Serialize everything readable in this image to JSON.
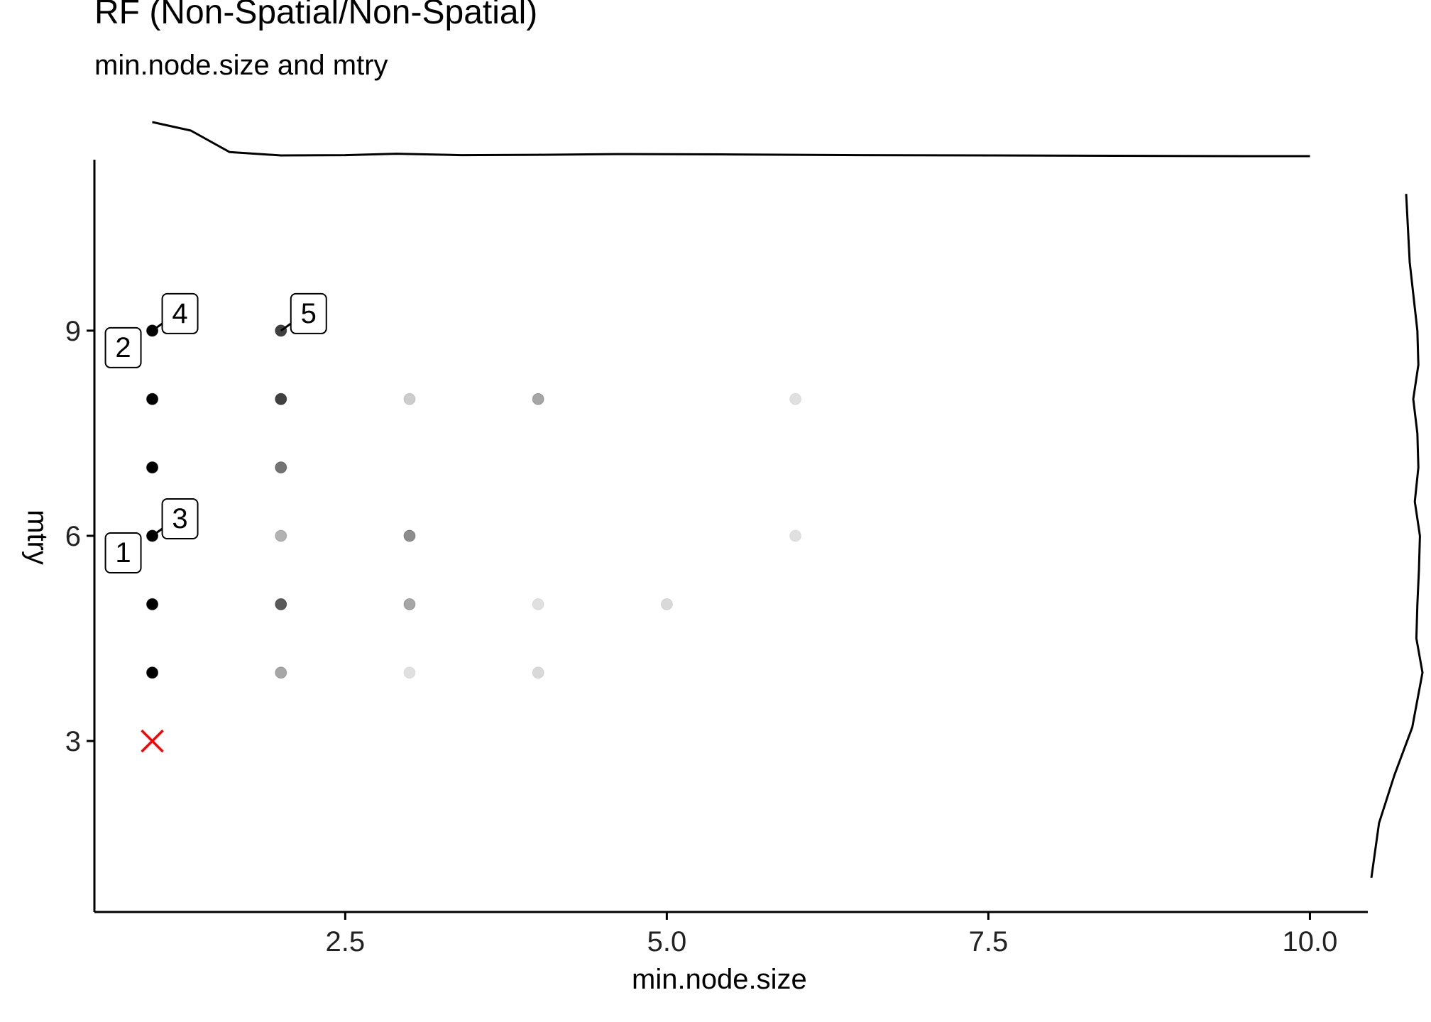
{
  "chart_data": {
    "type": "scatter",
    "title": "RF (Non-Spatial/Non-Spatial)",
    "subtitle": "min.node.size and mtry",
    "xlabel": "min.node.size",
    "ylabel": "mtry",
    "xlim": [
      0.55,
      10.45
    ],
    "ylim": [
      0.5,
      11.5
    ],
    "x_ticks": [
      2.5,
      5.0,
      7.5,
      10.0
    ],
    "x_tick_labels": [
      "2.5",
      "5.0",
      "7.5",
      "10.0"
    ],
    "y_ticks": [
      3,
      6,
      9
    ],
    "y_tick_labels": [
      "3",
      "6",
      "9"
    ],
    "grid": false,
    "points": [
      {
        "x": 1,
        "y": 9,
        "opacity": 1.0
      },
      {
        "x": 1,
        "y": 8,
        "opacity": 1.0
      },
      {
        "x": 1,
        "y": 7,
        "opacity": 1.0
      },
      {
        "x": 1,
        "y": 6,
        "opacity": 1.0
      },
      {
        "x": 1,
        "y": 5,
        "opacity": 1.0
      },
      {
        "x": 1,
        "y": 4,
        "opacity": 1.0
      },
      {
        "x": 2,
        "y": 9,
        "opacity": 0.75
      },
      {
        "x": 2,
        "y": 8,
        "opacity": 0.75
      },
      {
        "x": 2,
        "y": 7,
        "opacity": 0.55
      },
      {
        "x": 2,
        "y": 6,
        "opacity": 0.3
      },
      {
        "x": 2,
        "y": 5,
        "opacity": 0.65
      },
      {
        "x": 2,
        "y": 4,
        "opacity": 0.35
      },
      {
        "x": 3,
        "y": 8,
        "opacity": 0.2
      },
      {
        "x": 3,
        "y": 6,
        "opacity": 0.45
      },
      {
        "x": 3,
        "y": 5,
        "opacity": 0.35
      },
      {
        "x": 3,
        "y": 4,
        "opacity": 0.12
      },
      {
        "x": 4,
        "y": 8,
        "opacity": 0.35
      },
      {
        "x": 4,
        "y": 5,
        "opacity": 0.12
      },
      {
        "x": 4,
        "y": 4,
        "opacity": 0.15
      },
      {
        "x": 5,
        "y": 5,
        "opacity": 0.15
      },
      {
        "x": 6,
        "y": 8,
        "opacity": 0.12
      },
      {
        "x": 6,
        "y": 6,
        "opacity": 0.12
      }
    ],
    "default_marker": {
      "x": 1,
      "y": 3,
      "shape": "x",
      "color": "#ff0000"
    },
    "labels": [
      {
        "text": "1",
        "x": 1,
        "y": 6,
        "side": "lower-left"
      },
      {
        "text": "2",
        "x": 1,
        "y": 9,
        "side": "lower-left"
      },
      {
        "text": "3",
        "x": 1,
        "y": 6,
        "side": "upper-right"
      },
      {
        "text": "4",
        "x": 1,
        "y": 9,
        "side": "upper-right"
      },
      {
        "text": "5",
        "x": 2,
        "y": 9,
        "side": "upper-right"
      }
    ],
    "marginal_x_density": {
      "x": [
        1.0,
        1.3,
        1.6,
        2.0,
        2.5,
        2.9,
        3.4,
        4.0,
        4.6,
        5.5,
        6.5,
        7.5,
        8.5,
        9.5,
        10.0
      ],
      "density": [
        1.0,
        0.75,
        0.12,
        0.02,
        0.03,
        0.07,
        0.03,
        0.04,
        0.06,
        0.05,
        0.03,
        0.02,
        0.01,
        0.0,
        0.0
      ]
    },
    "marginal_y_density": {
      "y": [
        1.0,
        1.8,
        2.5,
        3.2,
        4.0,
        4.5,
        5.0,
        5.5,
        6.0,
        6.5,
        7.0,
        7.5,
        8.0,
        8.5,
        9.0,
        10.0,
        11.0
      ],
      "density": [
        0.0,
        0.15,
        0.45,
        0.8,
        1.0,
        0.88,
        0.9,
        0.93,
        0.95,
        0.85,
        0.92,
        0.9,
        0.82,
        0.92,
        0.9,
        0.75,
        0.68
      ]
    }
  }
}
